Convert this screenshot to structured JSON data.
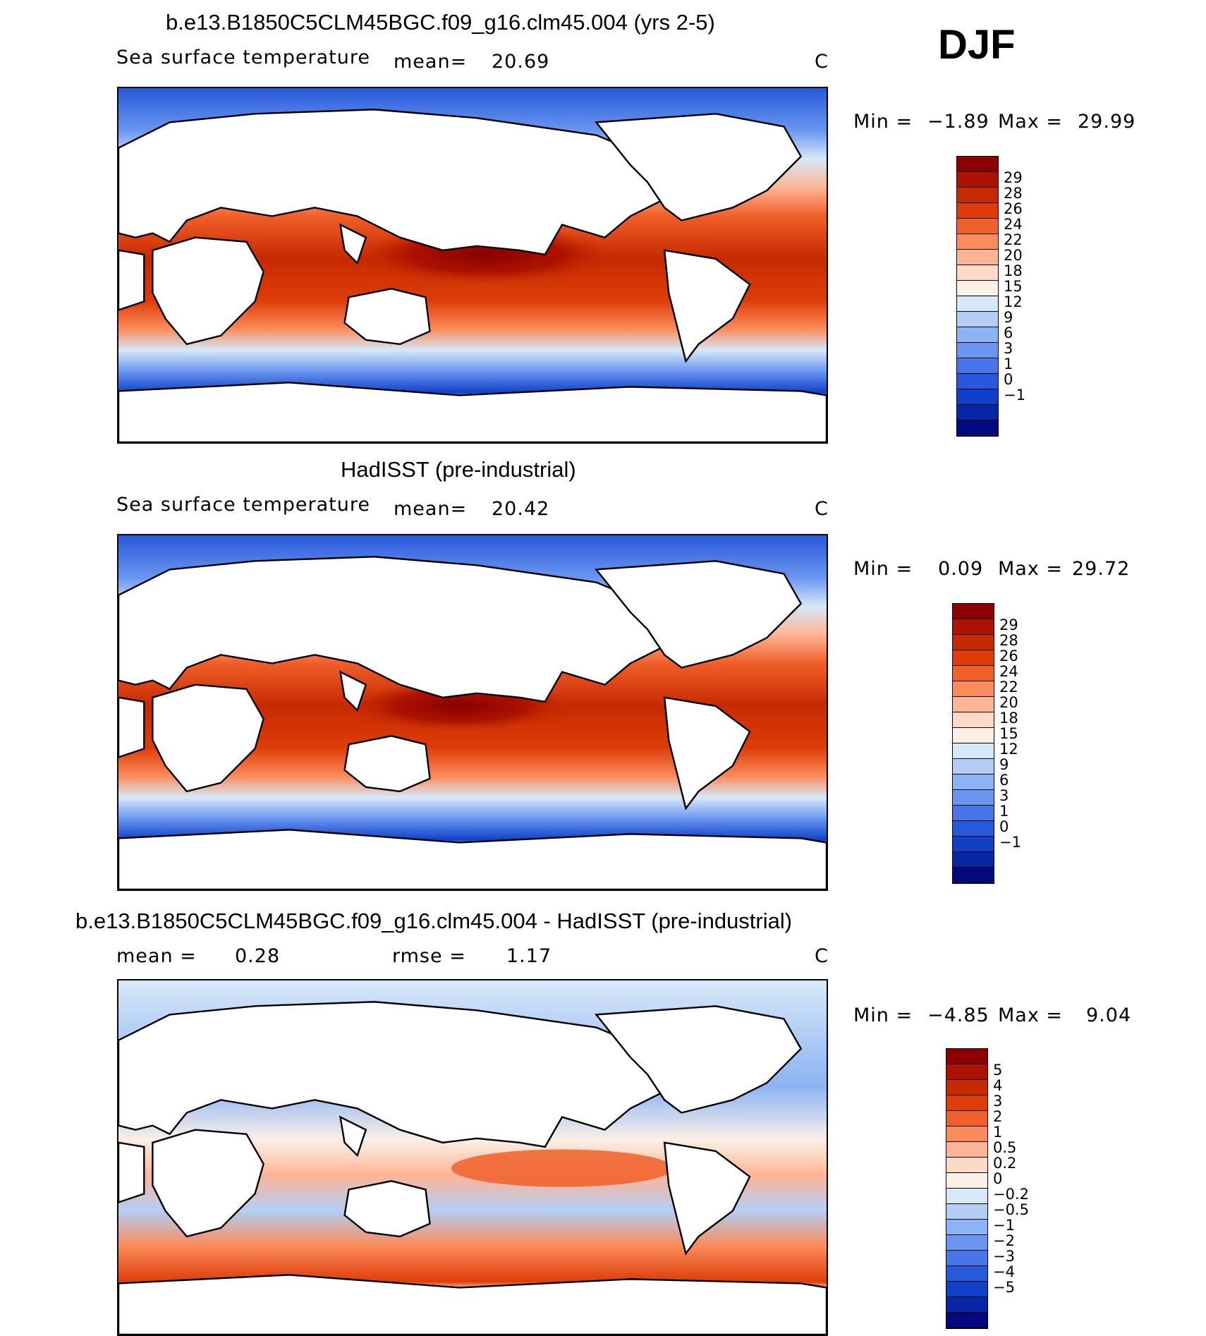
{
  "season": "DJF",
  "panels": [
    {
      "title": "b.e13.B1850C5CLM45BGC.f09_g16.clm45.004 (yrs 2-5)",
      "variable": "Sea surface temperature",
      "stat_label": "mean=",
      "stat_value": "20.69",
      "units": "C",
      "range": {
        "min_label": "Min =",
        "min": "−1.89",
        "max_label": "Max =",
        "max": "29.99"
      },
      "colorbar": {
        "labels": [
          "29",
          "28",
          "26",
          "24",
          "22",
          "20",
          "18",
          "15",
          "12",
          "9",
          "6",
          "3",
          "1",
          "0",
          "−1"
        ],
        "colors": [
          "#8b0000",
          "#ad1200",
          "#c72a00",
          "#de3d0a",
          "#f0602a",
          "#fb8b5a",
          "#fdb596",
          "#fddac6",
          "#fbf0e6",
          "#d7e8f8",
          "#b3cef5",
          "#8cb3f4",
          "#6a96ef",
          "#4876e8",
          "#2858dc",
          "#1040c8",
          "#0726a6",
          "#020a7e"
        ]
      }
    },
    {
      "title": "HadISST (pre-industrial)",
      "variable": "Sea surface temperature",
      "stat_label": "mean=",
      "stat_value": "20.42",
      "units": "C",
      "range": {
        "min_label": "Min =",
        "min": "0.09",
        "max_label": "Max =",
        "max": "29.72"
      },
      "colorbar": {
        "labels": [
          "29",
          "28",
          "26",
          "24",
          "22",
          "20",
          "18",
          "15",
          "12",
          "9",
          "6",
          "3",
          "1",
          "0",
          "−1"
        ],
        "colors": [
          "#8b0000",
          "#ad1200",
          "#c72a00",
          "#de3d0a",
          "#f0602a",
          "#fb8b5a",
          "#fdb596",
          "#fddac6",
          "#fbf0e6",
          "#d7e8f8",
          "#b3cef5",
          "#8cb3f4",
          "#6a96ef",
          "#4876e8",
          "#2858dc",
          "#1040c8",
          "#0726a6",
          "#020a7e"
        ]
      }
    },
    {
      "title": "b.e13.B1850C5CLM45BGC.f09_g16.clm45.004 - HadISST (pre-industrial)",
      "stat_label": "mean =",
      "stat_value": "0.28",
      "rmse_label": "rmse =",
      "rmse_value": "1.17",
      "units": "C",
      "range": {
        "min_label": "Min =",
        "min": "−4.85",
        "max_label": "Max =",
        "max": "9.04"
      },
      "colorbar": {
        "labels": [
          "5",
          "4",
          "3",
          "2",
          "1",
          "0.5",
          "0.2",
          "0",
          "−0.2",
          "−0.5",
          "−1",
          "−2",
          "−3",
          "−4",
          "−5"
        ],
        "colors": [
          "#8b0000",
          "#ad1200",
          "#c72a00",
          "#de3d0a",
          "#f0602a",
          "#fb8b5a",
          "#fdb596",
          "#fddac6",
          "#fbf0e6",
          "#d7e8f8",
          "#b3cef5",
          "#8cb3f4",
          "#6a96ef",
          "#4876e8",
          "#2858dc",
          "#1040c8",
          "#0726a6",
          "#020a7e"
        ]
      }
    }
  ]
}
